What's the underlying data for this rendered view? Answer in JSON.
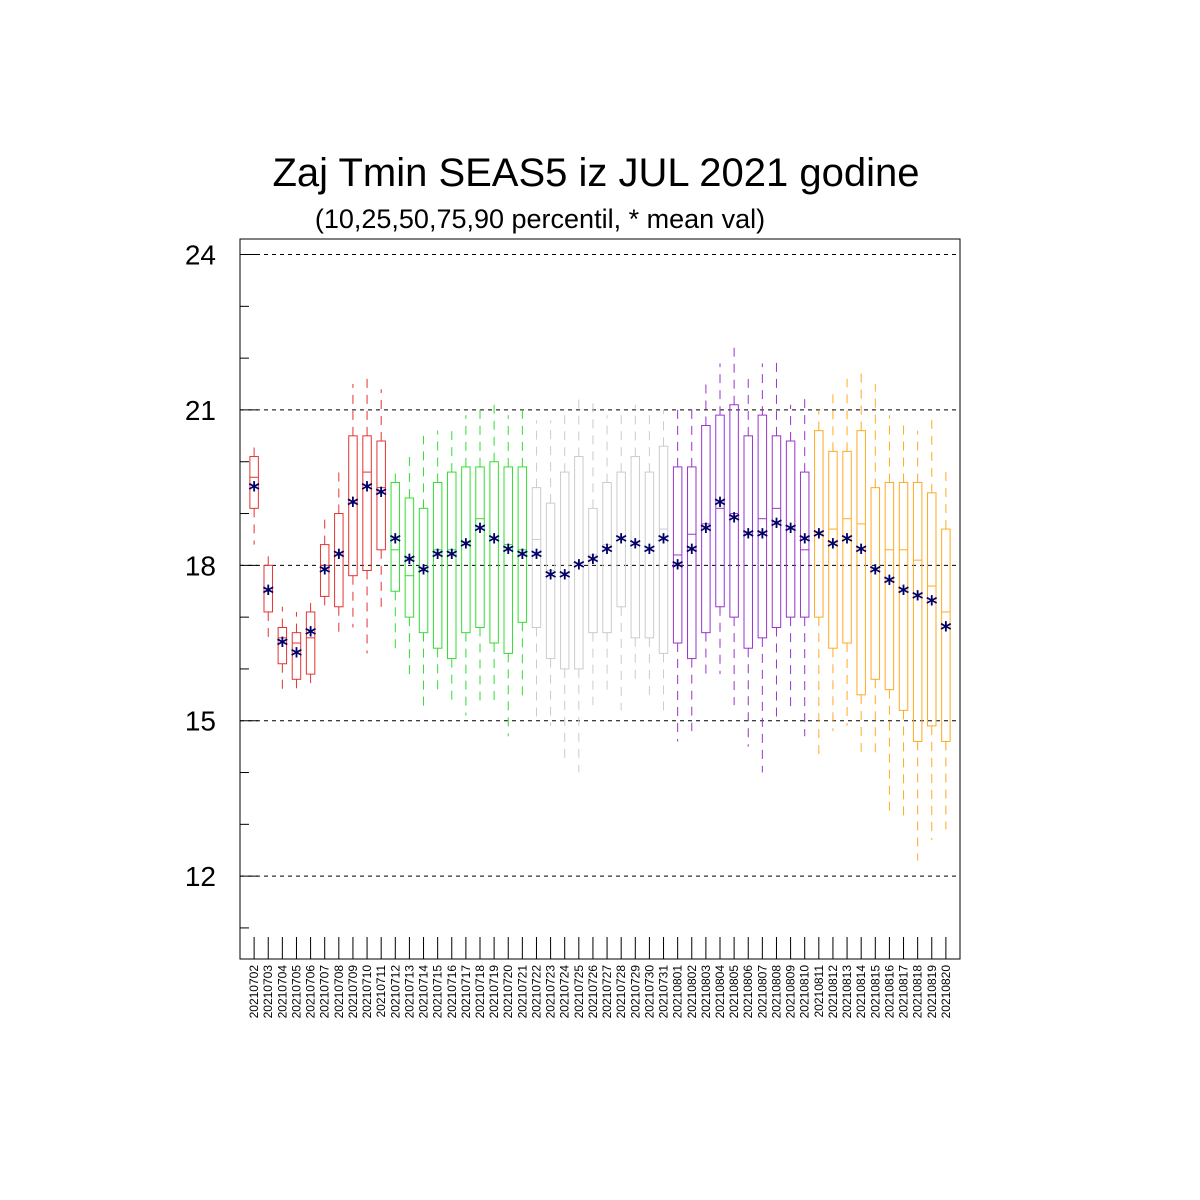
{
  "chart_data": {
    "type": "box",
    "title": "Zaj Tmin SEAS5 iz JUL 2021 godine",
    "subtitle": "(10,25,50,75,90 percentil, * mean val)",
    "ylim": [
      10.4,
      24.3
    ],
    "yticks": [
      12,
      15,
      18,
      21,
      24
    ],
    "grid": "horizontal dashed at major ticks",
    "marker_color": "#000066",
    "categories": [
      "20210702",
      "20210703",
      "20210704",
      "20210705",
      "20210706",
      "20210707",
      "20210708",
      "20210709",
      "20210710",
      "20210711",
      "20210712",
      "20210713",
      "20210714",
      "20210715",
      "20210716",
      "20210717",
      "20210718",
      "20210719",
      "20210720",
      "20210721",
      "20210722",
      "20210723",
      "20210724",
      "20210725",
      "20210726",
      "20210727",
      "20210728",
      "20210729",
      "20210730",
      "20210731",
      "20210801",
      "20210802",
      "20210803",
      "20210804",
      "20210805",
      "20210806",
      "20210807",
      "20210808",
      "20210809",
      "20210810",
      "20210811",
      "20210812",
      "20210813",
      "20210814",
      "20210815",
      "20210816",
      "20210817",
      "20210818",
      "20210819",
      "20210820"
    ],
    "colors": [
      "#e53333",
      "#e53333",
      "#e53333",
      "#e53333",
      "#e53333",
      "#e53333",
      "#e53333",
      "#e53333",
      "#e53333",
      "#e53333",
      "#33dd33",
      "#33dd33",
      "#33dd33",
      "#33dd33",
      "#33dd33",
      "#33dd33",
      "#33dd33",
      "#33dd33",
      "#33dd33",
      "#33dd33",
      "#cccccc",
      "#cccccc",
      "#cccccc",
      "#cccccc",
      "#cccccc",
      "#cccccc",
      "#cccccc",
      "#cccccc",
      "#cccccc",
      "#cccccc",
      "#9933cc",
      "#9933cc",
      "#9933cc",
      "#9933cc",
      "#9933cc",
      "#9933cc",
      "#9933cc",
      "#9933cc",
      "#9933cc",
      "#9933cc",
      "#ffaa22",
      "#ffaa22",
      "#ffaa22",
      "#ffaa22",
      "#ffaa22",
      "#ffaa22",
      "#ffaa22",
      "#ffaa22",
      "#ffaa22",
      "#ffaa22"
    ],
    "p10": [
      18.4,
      16.6,
      15.6,
      15.5,
      15.7,
      17.1,
      16.6,
      16.8,
      16.3,
      17.1,
      16.4,
      15.9,
      15.2,
      15.5,
      15.4,
      15.1,
      15.3,
      15.4,
      14.7,
      15.4,
      15.0,
      14.9,
      14.2,
      14.0,
      15.3,
      15.6,
      15.2,
      15.8,
      15.4,
      15.2,
      14.6,
      14.8,
      15.9,
      15.9,
      15.3,
      14.5,
      14.0,
      15.0,
      15.2,
      14.7,
      14.3,
      14.8,
      14.9,
      14.4,
      14.3,
      13.2,
      13.1,
      12.3,
      12.7,
      12.9
    ],
    "p25": [
      19.1,
      17.1,
      16.1,
      15.8,
      15.9,
      17.4,
      17.2,
      17.8,
      17.9,
      18.3,
      17.5,
      17.0,
      16.7,
      16.4,
      16.2,
      16.7,
      16.8,
      16.5,
      16.3,
      16.9,
      16.8,
      16.2,
      16.0,
      16.0,
      16.7,
      16.7,
      17.2,
      16.6,
      16.6,
      16.3,
      16.5,
      16.2,
      16.7,
      17.2,
      17.0,
      16.4,
      16.6,
      16.8,
      17.0,
      17.0,
      17.0,
      16.4,
      16.5,
      15.5,
      15.8,
      15.6,
      15.2,
      14.6,
      14.9,
      14.6
    ],
    "p50": [
      19.7,
      17.5,
      16.6,
      16.5,
      16.6,
      18.0,
      18.2,
      19.2,
      19.8,
      19.5,
      18.3,
      17.8,
      17.9,
      18.3,
      18.3,
      18.4,
      18.9,
      18.5,
      18.4,
      18.3,
      18.5,
      17.9,
      17.8,
      18.0,
      18.2,
      18.4,
      18.5,
      18.4,
      18.3,
      18.7,
      18.2,
      18.6,
      18.8,
      19.1,
      19.0,
      18.6,
      18.9,
      19.1,
      18.7,
      18.3,
      18.6,
      18.7,
      18.9,
      18.8,
      17.9,
      18.3,
      18.3,
      18.1,
      17.6,
      17.1
    ],
    "p75": [
      20.1,
      18.0,
      16.8,
      16.7,
      17.1,
      18.4,
      19.0,
      20.5,
      20.5,
      20.4,
      19.6,
      19.3,
      19.1,
      19.6,
      19.8,
      19.9,
      19.9,
      20.0,
      19.9,
      19.9,
      19.5,
      19.2,
      19.8,
      20.1,
      19.1,
      19.6,
      19.8,
      20.1,
      19.8,
      20.3,
      19.9,
      19.9,
      20.7,
      20.9,
      21.1,
      20.5,
      20.9,
      20.5,
      20.4,
      19.8,
      20.6,
      20.2,
      20.2,
      20.6,
      19.5,
      19.6,
      19.6,
      19.6,
      19.4,
      18.7
    ],
    "p90": [
      20.3,
      18.3,
      17.2,
      17.1,
      17.4,
      18.9,
      19.8,
      21.5,
      21.6,
      21.4,
      19.9,
      20.2,
      20.5,
      20.6,
      20.6,
      20.9,
      21.0,
      21.1,
      20.9,
      21.0,
      20.8,
      20.8,
      20.9,
      21.3,
      21.2,
      20.9,
      20.9,
      21.1,
      21.0,
      21.0,
      21.0,
      21.0,
      21.5,
      21.9,
      22.3,
      21.6,
      21.9,
      22.0,
      21.1,
      21.3,
      21.0,
      21.3,
      21.6,
      21.7,
      21.5,
      20.9,
      20.7,
      20.6,
      20.9,
      19.9
    ],
    "mean": [
      19.5,
      17.5,
      16.5,
      16.3,
      16.7,
      17.9,
      18.2,
      19.2,
      19.5,
      19.4,
      18.5,
      18.1,
      17.9,
      18.2,
      18.2,
      18.4,
      18.7,
      18.5,
      18.3,
      18.2,
      18.2,
      17.8,
      17.8,
      18.0,
      18.1,
      18.3,
      18.5,
      18.4,
      18.3,
      18.5,
      18.0,
      18.3,
      18.7,
      19.2,
      18.9,
      18.6,
      18.6,
      18.8,
      18.7,
      18.5,
      18.6,
      18.4,
      18.5,
      18.3,
      17.9,
      17.7,
      17.5,
      17.4,
      17.3,
      16.8
    ]
  }
}
